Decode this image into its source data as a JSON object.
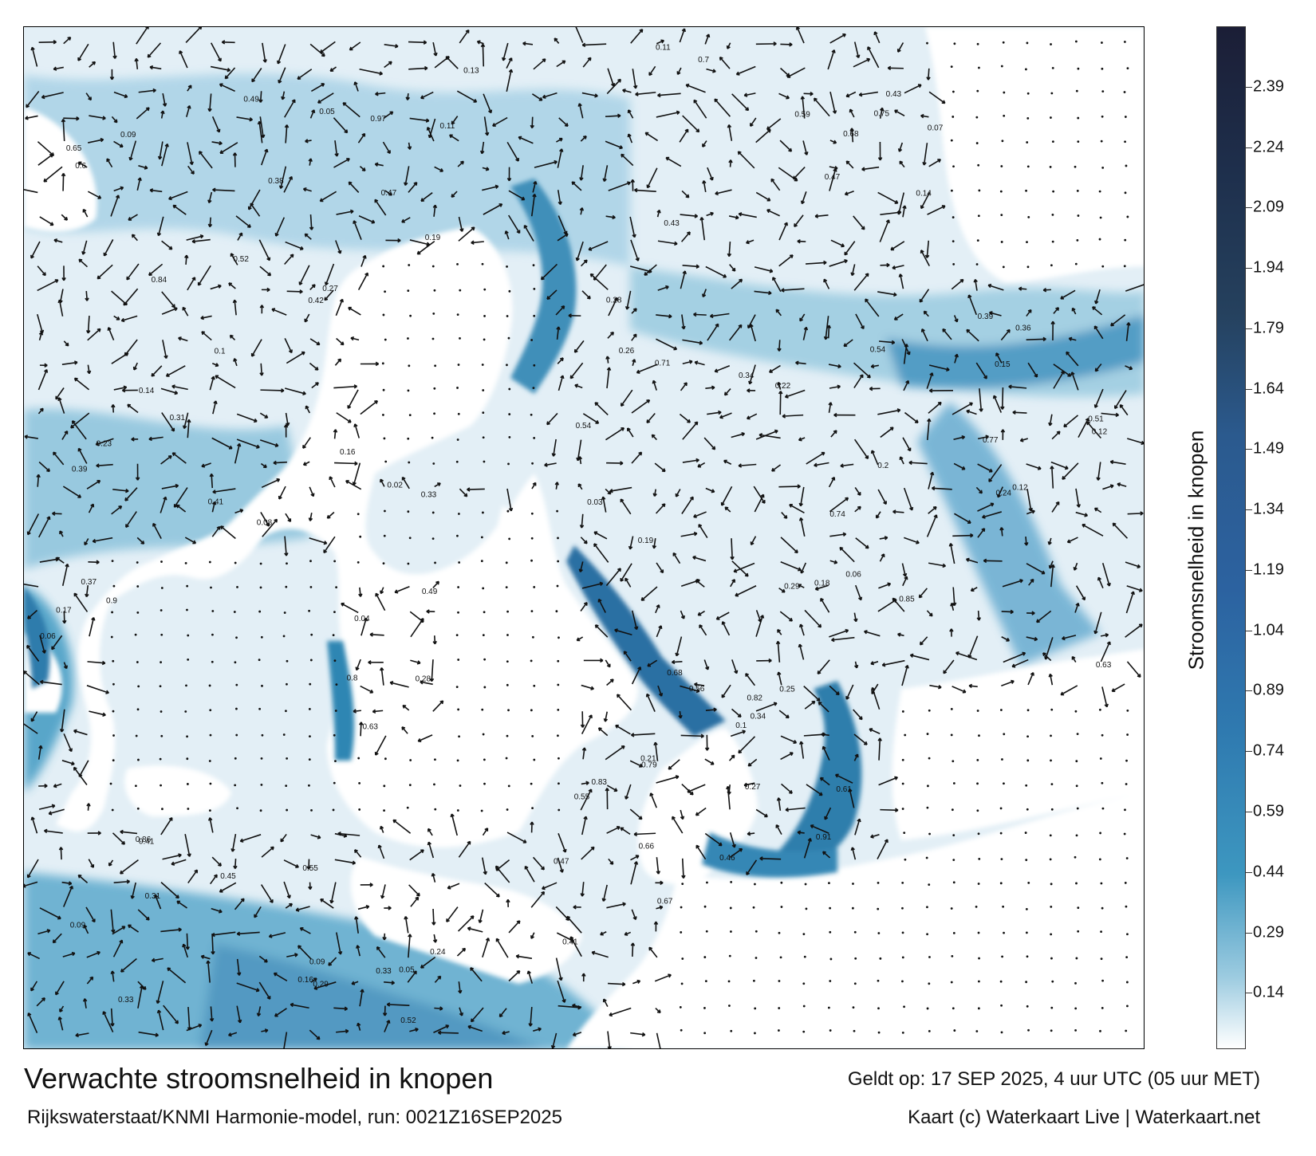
{
  "title": "Verwachte stroomsnelheid in knopen",
  "model": "Rijkswaterstaat/KNMI Harmonie-model, run: 0021Z16SEP2025",
  "valid_time": "Geldt op: 17 SEP 2025, 4 uur UTC (05 uur MET)",
  "credit": "Kaart (c) Waterkaart Live | Waterkaart.net",
  "colorbar": {
    "label": "Stroomsnelheid in knopen",
    "ticks": [
      "0.14",
      "0.29",
      "0.44",
      "0.59",
      "0.74",
      "0.89",
      "1.04",
      "1.19",
      "1.34",
      "1.49",
      "1.64",
      "1.79",
      "1.94",
      "2.09",
      "2.24",
      "2.39"
    ],
    "tick_values": [
      0.14,
      0.29,
      0.44,
      0.59,
      0.74,
      0.89,
      1.04,
      1.19,
      1.34,
      1.49,
      1.64,
      1.79,
      1.94,
      2.09,
      2.24,
      2.39
    ],
    "range": [
      0,
      2.54
    ],
    "bands": [
      {
        "from": 0.0,
        "to": 0.37,
        "color": "#f4f8fb"
      },
      {
        "from": 0.37,
        "to": 0.8,
        "color": "#4ba6c6"
      },
      {
        "from": 0.8,
        "to": 1.64,
        "color": "#2f6aa5"
      },
      {
        "from": 1.64,
        "to": 2.09,
        "color": "#25415e"
      },
      {
        "from": 2.09,
        "to": 2.54,
        "color": "#1b1e36"
      }
    ]
  },
  "colors": {
    "water_light": "#eef5fa",
    "water_mid": "#7cbad6",
    "water_strong": "#3287b4",
    "water_deep": "#1f5f8e",
    "land": "#ffffff"
  },
  "labels": [
    {
      "text": "0.22"
    },
    {
      "text": "0.14"
    },
    {
      "text": "0.15"
    },
    {
      "text": "0.11"
    },
    {
      "text": "0.17"
    },
    {
      "text": "0.16"
    },
    {
      "text": "0.11"
    },
    {
      "text": "0.27"
    },
    {
      "text": "0.18"
    },
    {
      "text": "0.41"
    },
    {
      "text": "0.07"
    },
    {
      "text": "0.03"
    },
    {
      "text": "0.28"
    },
    {
      "text": "0.19"
    },
    {
      "text": "0.24"
    },
    {
      "text": "0.2"
    },
    {
      "text": "0.05"
    },
    {
      "text": "0.09"
    },
    {
      "text": "0.16"
    },
    {
      "text": "0.12"
    },
    {
      "text": "0.09"
    },
    {
      "text": "0.28"
    },
    {
      "text": "0.43"
    },
    {
      "text": "0.59"
    },
    {
      "text": "0.61"
    },
    {
      "text": "0.63"
    },
    {
      "text": "0.46"
    },
    {
      "text": "0.34"
    },
    {
      "text": "0.29"
    },
    {
      "text": "0.39"
    },
    {
      "text": "0.38"
    },
    {
      "text": "0.47"
    },
    {
      "text": "0.49"
    },
    {
      "text": "0.41"
    },
    {
      "text": "0.31"
    },
    {
      "text": "0.25"
    },
    {
      "text": "0.83"
    },
    {
      "text": "0.68"
    },
    {
      "text": "0.79"
    },
    {
      "text": "0.66"
    },
    {
      "text": "0.8"
    },
    {
      "text": "0.77"
    },
    {
      "text": "0.41"
    },
    {
      "text": "0.52"
    },
    {
      "text": "0.67"
    },
    {
      "text": "0.75"
    },
    {
      "text": "0.84"
    },
    {
      "text": "0.85"
    },
    {
      "text": "0.91"
    },
    {
      "text": "0.86"
    },
    {
      "text": "0.82"
    },
    {
      "text": "0.71"
    },
    {
      "text": "0.74"
    },
    {
      "text": "0.55"
    },
    {
      "text": "0.56"
    },
    {
      "text": "0.9"
    },
    {
      "text": "0.51"
    },
    {
      "text": "0.65"
    },
    {
      "text": "0.42"
    },
    {
      "text": "0.39"
    },
    {
      "text": "0.21"
    },
    {
      "text": "0.33"
    },
    {
      "text": "0.36"
    },
    {
      "text": "0.47"
    },
    {
      "text": "0.29"
    },
    {
      "text": "0.55"
    },
    {
      "text": "0.43"
    },
    {
      "text": "0.54"
    },
    {
      "text": "0.52"
    },
    {
      "text": "0.63"
    },
    {
      "text": "0.37"
    },
    {
      "text": "0.6"
    },
    {
      "text": "0.68"
    },
    {
      "text": "0.54"
    },
    {
      "text": "0.47"
    },
    {
      "text": "0.33"
    },
    {
      "text": "0.26"
    },
    {
      "text": "0.06"
    },
    {
      "text": "0.1"
    },
    {
      "text": "0.05"
    },
    {
      "text": "0.97"
    },
    {
      "text": "0.02"
    },
    {
      "text": "0.49"
    },
    {
      "text": "0.45"
    },
    {
      "text": "0.34"
    },
    {
      "text": "0.24"
    },
    {
      "text": "0.27"
    },
    {
      "text": "0.19"
    },
    {
      "text": "0.12"
    },
    {
      "text": "0.08"
    },
    {
      "text": "0.13"
    },
    {
      "text": "0.04"
    },
    {
      "text": "0.1"
    },
    {
      "text": "0.06"
    },
    {
      "text": "0.31"
    },
    {
      "text": "0.33"
    },
    {
      "text": "0.7"
    },
    {
      "text": "0.09"
    },
    {
      "text": "0.23"
    },
    {
      "text": "0.14"
    }
  ]
}
